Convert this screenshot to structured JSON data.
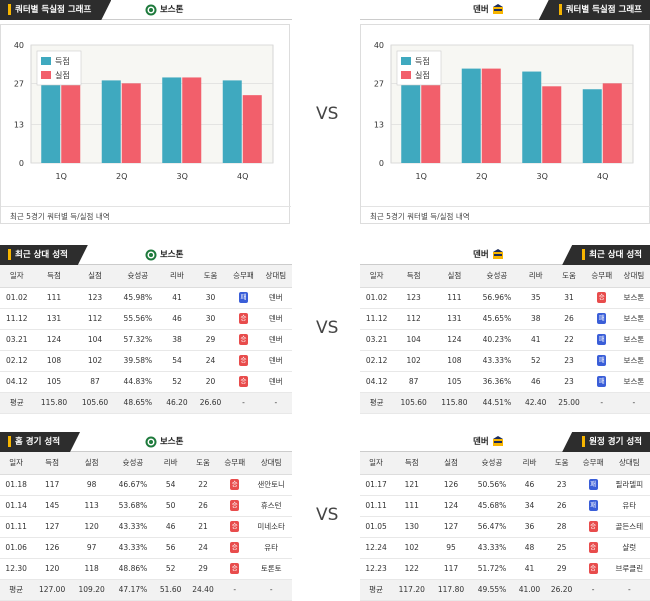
{
  "left_chart": {
    "tag": "쿼터별 득실점 그래프",
    "team": "보스톤",
    "footer": "최근 5경기 쿼터별 득/실점 내역",
    "chart_data": {
      "type": "bar",
      "categories": [
        "1Q",
        "2Q",
        "3Q",
        "4Q"
      ],
      "series": [
        {
          "name": "득점",
          "values": [
            29,
            28,
            29,
            28
          ],
          "color": "#3fa9bf"
        },
        {
          "name": "실점",
          "values": [
            29,
            27,
            29,
            23
          ],
          "color": "#f25f6b"
        }
      ],
      "ylim": [
        0,
        40
      ],
      "yticks": [
        0,
        13,
        27,
        40
      ],
      "legend": "top-left",
      "grid": true
    }
  },
  "right_chart": {
    "tag": "쿼터별 득실점 그래프",
    "team": "덴버",
    "footer": "최근 5경기 쿼터별 득/실점 내역",
    "chart_data": {
      "type": "bar",
      "categories": [
        "1Q",
        "2Q",
        "3Q",
        "4Q"
      ],
      "series": [
        {
          "name": "득점",
          "values": [
            31,
            32,
            31,
            25
          ],
          "color": "#3fa9bf"
        },
        {
          "name": "실점",
          "values": [
            30,
            32,
            26,
            27
          ],
          "color": "#f25f6b"
        }
      ],
      "ylim": [
        0,
        40
      ],
      "yticks": [
        0,
        13,
        27,
        40
      ],
      "legend": "top-left",
      "grid": true
    }
  },
  "vs": "VS",
  "columns": [
    "일자",
    "득점",
    "실점",
    "슛성공",
    "리바",
    "도움",
    "승무패",
    "상대팀"
  ],
  "h2h_left": {
    "tag": "최근 상대 성적",
    "team": "보스톤",
    "rows": [
      [
        "01.02",
        "111",
        "123",
        "45.98%",
        "41",
        "30",
        "패",
        "덴버"
      ],
      [
        "11.12",
        "131",
        "112",
        "55.56%",
        "46",
        "30",
        "승",
        "덴버"
      ],
      [
        "03.21",
        "124",
        "104",
        "57.32%",
        "38",
        "29",
        "승",
        "덴버"
      ],
      [
        "02.12",
        "108",
        "102",
        "39.58%",
        "54",
        "24",
        "승",
        "덴버"
      ],
      [
        "04.12",
        "105",
        "87",
        "44.83%",
        "52",
        "20",
        "승",
        "덴버"
      ]
    ],
    "avg": [
      "평균",
      "115.80",
      "105.60",
      "48.65%",
      "46.20",
      "26.60",
      "-",
      "-"
    ]
  },
  "h2h_right": {
    "tag": "최근 상대 성적",
    "team": "덴버",
    "rows": [
      [
        "01.02",
        "123",
        "111",
        "56.96%",
        "35",
        "31",
        "승",
        "보스톤"
      ],
      [
        "11.12",
        "112",
        "131",
        "45.65%",
        "38",
        "26",
        "패",
        "보스톤"
      ],
      [
        "03.21",
        "104",
        "124",
        "40.23%",
        "41",
        "22",
        "패",
        "보스톤"
      ],
      [
        "02.12",
        "102",
        "108",
        "43.33%",
        "52",
        "23",
        "패",
        "보스톤"
      ],
      [
        "04.12",
        "87",
        "105",
        "36.36%",
        "46",
        "23",
        "패",
        "보스톤"
      ]
    ],
    "avg": [
      "평균",
      "105.60",
      "115.80",
      "44.51%",
      "42.40",
      "25.00",
      "-",
      "-"
    ]
  },
  "home_left": {
    "tag": "홈 경기 성적",
    "team": "보스톤",
    "rows": [
      [
        "01.18",
        "117",
        "98",
        "46.67%",
        "54",
        "22",
        "승",
        "샌안토니"
      ],
      [
        "01.14",
        "145",
        "113",
        "53.68%",
        "50",
        "26",
        "승",
        "휴스턴"
      ],
      [
        "01.11",
        "127",
        "120",
        "43.33%",
        "46",
        "21",
        "승",
        "미네소타"
      ],
      [
        "01.06",
        "126",
        "97",
        "43.33%",
        "56",
        "24",
        "승",
        "유타"
      ],
      [
        "12.30",
        "120",
        "118",
        "48.86%",
        "52",
        "29",
        "승",
        "토론토"
      ]
    ],
    "avg": [
      "평균",
      "127.00",
      "109.20",
      "47.17%",
      "51.60",
      "24.40",
      "-",
      "-"
    ]
  },
  "away_right": {
    "tag": "원정 경기 성적",
    "team": "덴버",
    "rows": [
      [
        "01.17",
        "121",
        "126",
        "50.56%",
        "46",
        "23",
        "패",
        "필라델피"
      ],
      [
        "01.11",
        "111",
        "124",
        "45.68%",
        "34",
        "26",
        "패",
        "유타"
      ],
      [
        "01.05",
        "130",
        "127",
        "56.47%",
        "36",
        "28",
        "승",
        "골든스테"
      ],
      [
        "12.24",
        "102",
        "95",
        "43.33%",
        "48",
        "25",
        "승",
        "샬럿"
      ],
      [
        "12.23",
        "122",
        "117",
        "51.72%",
        "41",
        "29",
        "승",
        "브루클린"
      ]
    ],
    "avg": [
      "평균",
      "117.20",
      "117.80",
      "49.55%",
      "41.00",
      "26.20",
      "-",
      "-"
    ]
  }
}
